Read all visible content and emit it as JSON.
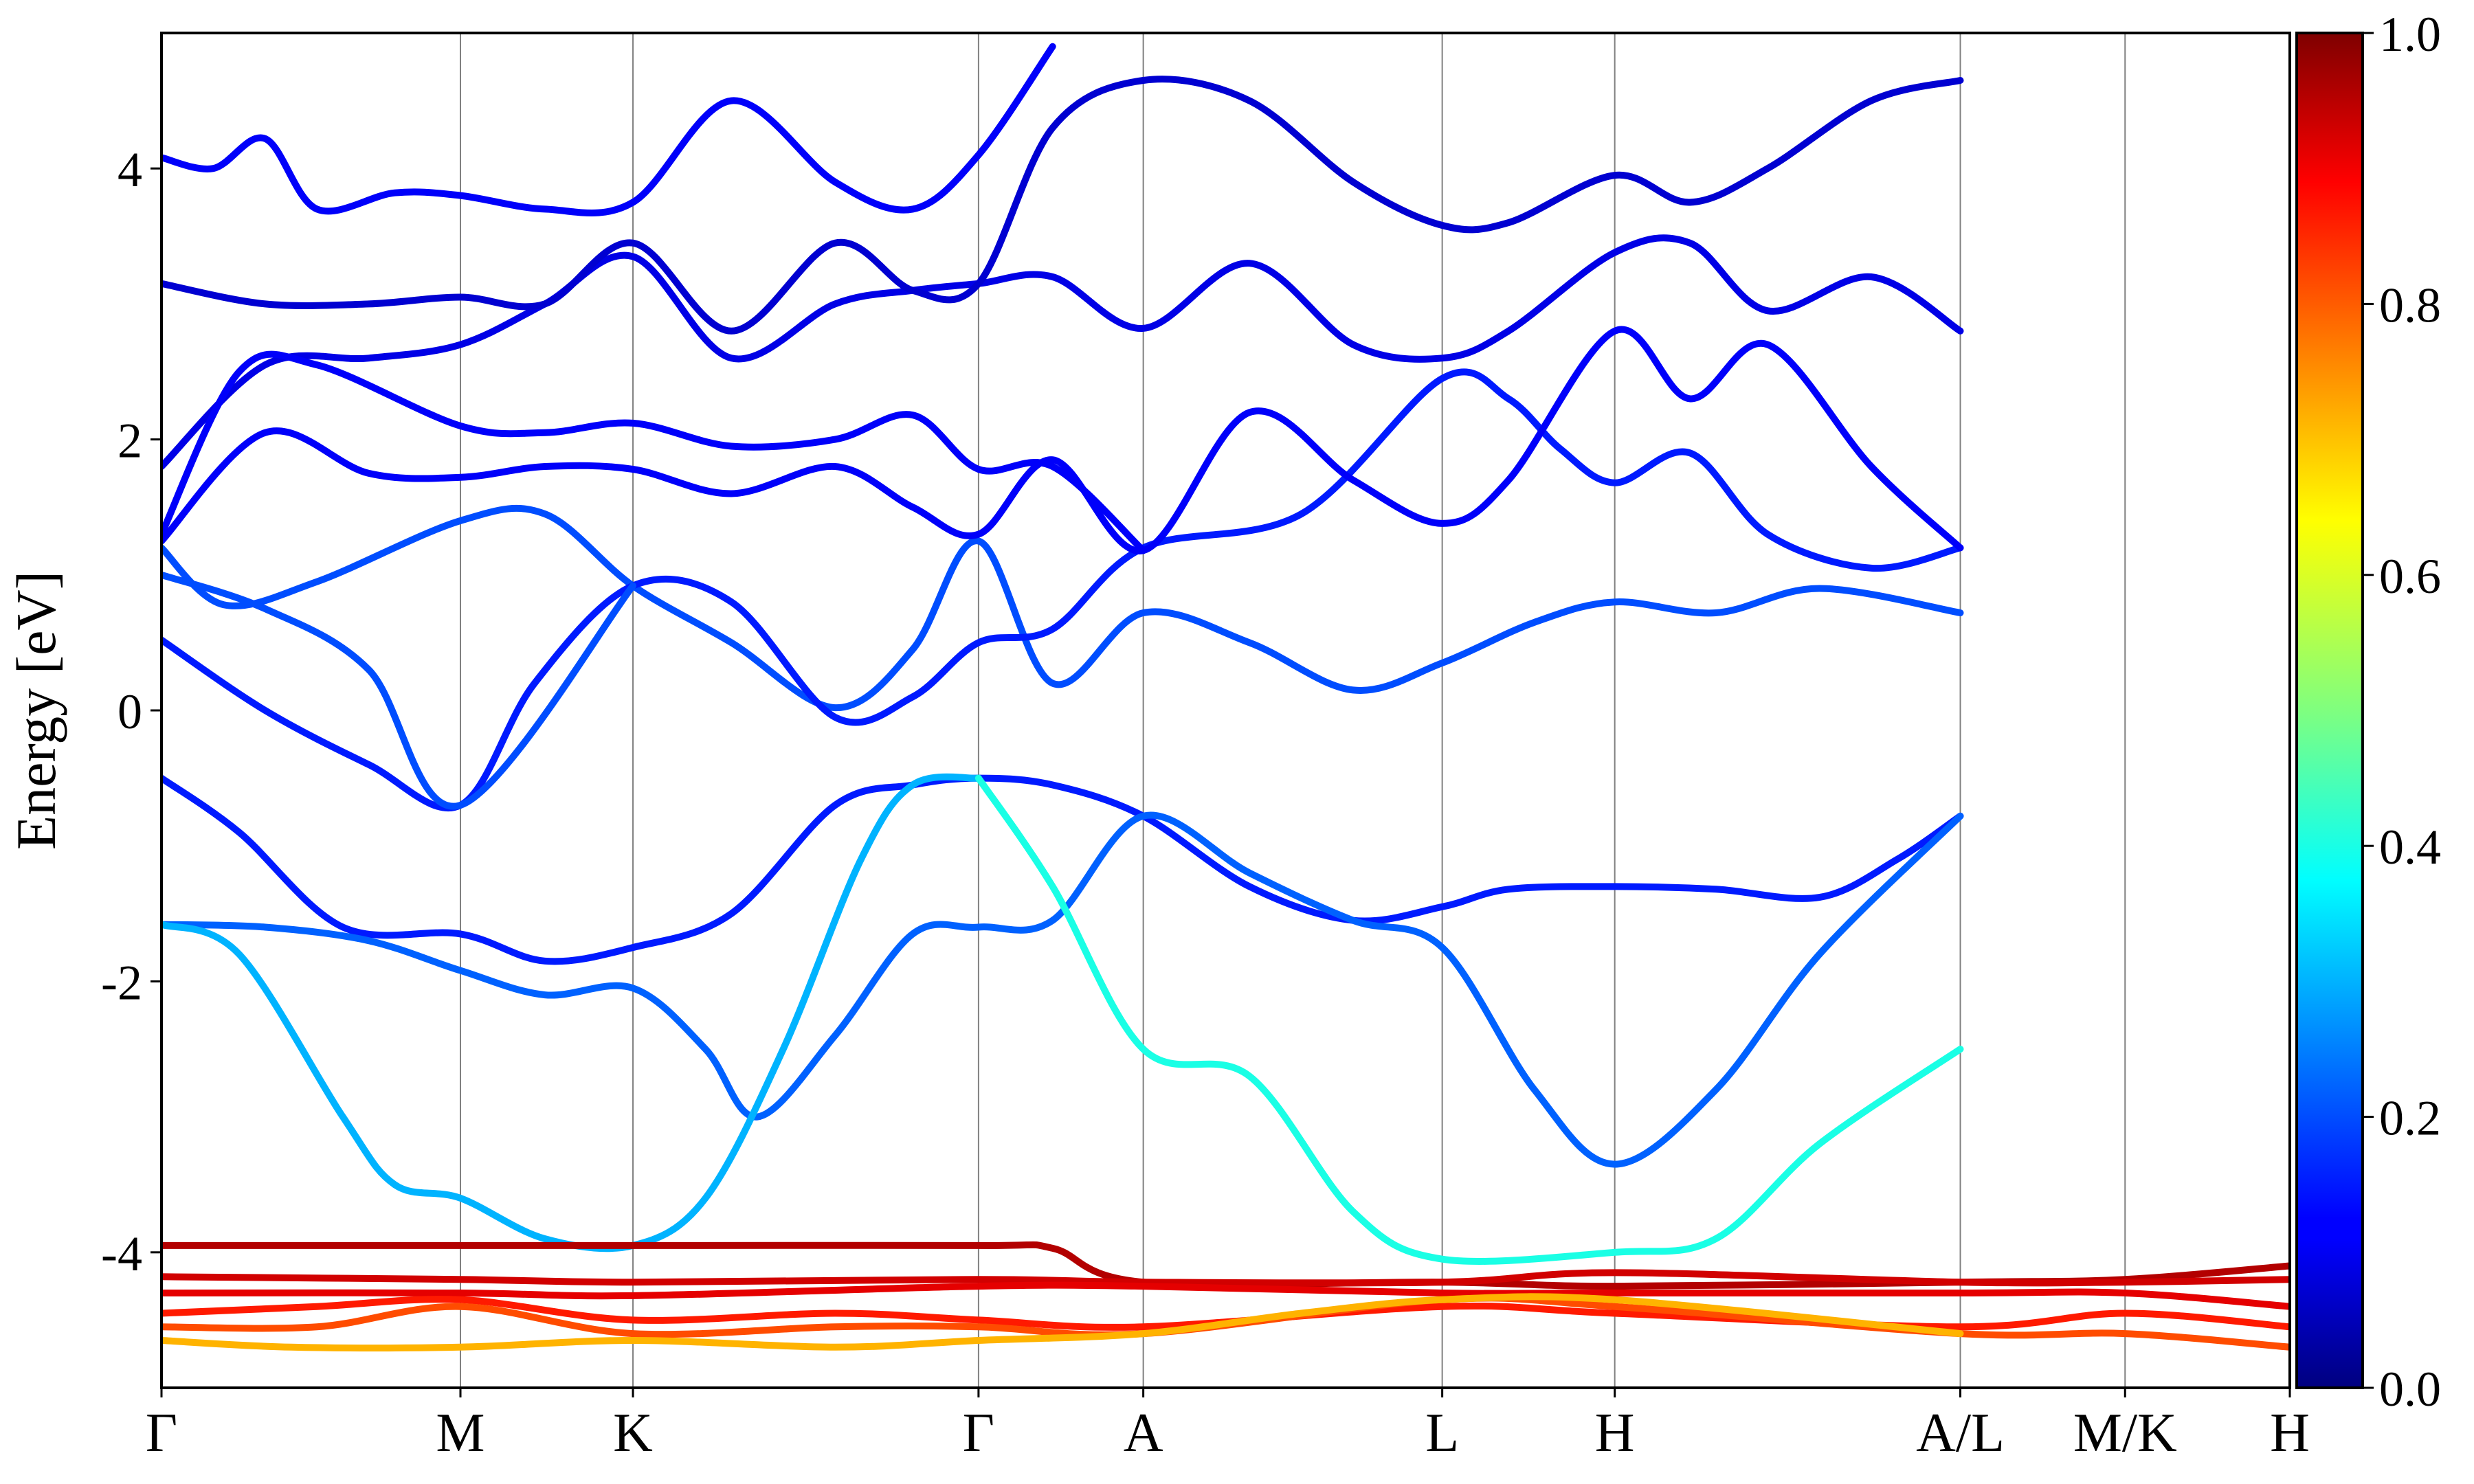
{
  "chart_data": {
    "type": "line",
    "ylabel": "Energy [eV]",
    "ylim": [
      -5,
      5
    ],
    "y_ticks": [
      "-4",
      "-2",
      "0",
      "2",
      "4"
    ],
    "y_tick_values": [
      -4,
      -2,
      0,
      2,
      4
    ],
    "k_points": [
      {
        "label": "Γ",
        "x": 0.0
      },
      {
        "label": "M",
        "x": 0.577
      },
      {
        "label": "K",
        "x": 0.91
      },
      {
        "label": "Γ",
        "x": 1.577
      },
      {
        "label": "A",
        "x": 1.895
      },
      {
        "label": "L",
        "x": 2.472
      },
      {
        "label": "H",
        "x": 2.805
      },
      {
        "label": "A/L",
        "x": 3.472
      },
      {
        "label": "M/K",
        "x": 3.79
      },
      {
        "label": "H",
        "x": 4.108
      }
    ],
    "colorbar": {
      "range": [
        0.0,
        1.0
      ],
      "ticks": [
        "0.0",
        "0.2",
        "0.4",
        "0.6",
        "0.8",
        "1.0"
      ],
      "tick_values": [
        0.0,
        0.2,
        0.4,
        0.6,
        0.8,
        1.0
      ],
      "colormap": "jet"
    },
    "bands": [
      {
        "weight": 0.2,
        "points": [
          [
            0.0,
            1.2
          ],
          [
            0.12,
            0.78
          ],
          [
            0.3,
            0.95
          ],
          [
            0.577,
            1.4
          ],
          [
            0.74,
            1.45
          ],
          [
            0.91,
            0.92
          ],
          [
            1.1,
            0.5
          ],
          [
            1.3,
            0.02
          ],
          [
            1.45,
            0.45
          ],
          [
            1.577,
            1.25
          ],
          [
            1.72,
            0.2
          ],
          [
            1.895,
            0.72
          ],
          [
            2.1,
            0.5
          ],
          [
            2.3,
            0.15
          ],
          [
            2.472,
            0.35
          ],
          [
            2.65,
            0.65
          ],
          [
            2.805,
            0.8
          ],
          [
            3.0,
            0.72
          ],
          [
            3.2,
            0.9
          ],
          [
            3.472,
            0.72
          ]
        ]
      },
      {
        "weight": 0.15,
        "points": [
          [
            0.0,
            0.52
          ],
          [
            0.2,
            0.0
          ],
          [
            0.4,
            -0.4
          ],
          [
            0.577,
            -0.7
          ],
          [
            0.72,
            0.2
          ],
          [
            0.91,
            0.92
          ],
          [
            1.1,
            0.8
          ],
          [
            1.3,
            -0.05
          ],
          [
            1.45,
            0.1
          ],
          [
            1.577,
            0.5
          ],
          [
            1.72,
            0.6
          ],
          [
            1.895,
            1.2
          ],
          [
            2.2,
            1.45
          ],
          [
            2.472,
            2.45
          ],
          [
            2.6,
            2.3
          ],
          [
            2.7,
            1.93
          ],
          [
            2.805,
            1.68
          ],
          [
            2.95,
            1.9
          ],
          [
            3.1,
            1.3
          ],
          [
            3.3,
            1.05
          ],
          [
            3.472,
            1.2
          ]
        ]
      },
      {
        "weight": 0.12,
        "points": [
          [
            0.0,
            1.25
          ],
          [
            0.2,
            2.05
          ],
          [
            0.4,
            1.75
          ],
          [
            0.577,
            1.72
          ],
          [
            0.74,
            1.8
          ],
          [
            0.91,
            1.78
          ],
          [
            1.1,
            1.6
          ],
          [
            1.3,
            1.8
          ],
          [
            1.45,
            1.5
          ],
          [
            1.577,
            1.3
          ],
          [
            1.72,
            1.85
          ],
          [
            1.895,
            1.18
          ],
          [
            2.1,
            2.2
          ],
          [
            2.3,
            1.7
          ],
          [
            2.472,
            1.38
          ],
          [
            2.6,
            1.7
          ],
          [
            2.805,
            2.8
          ],
          [
            2.95,
            2.3
          ],
          [
            3.1,
            2.7
          ],
          [
            3.3,
            1.8
          ],
          [
            3.472,
            1.2
          ]
        ]
      },
      {
        "weight": 0.1,
        "points": [
          [
            0.0,
            1.8
          ],
          [
            0.2,
            2.55
          ],
          [
            0.4,
            2.6
          ],
          [
            0.577,
            2.7
          ],
          [
            0.74,
            3.0
          ],
          [
            0.91,
            3.35
          ],
          [
            1.1,
            2.6
          ],
          [
            1.3,
            3.0
          ],
          [
            1.45,
            3.1
          ],
          [
            1.577,
            3.15
          ],
          [
            1.72,
            3.2
          ],
          [
            1.895,
            2.82
          ],
          [
            2.1,
            3.3
          ],
          [
            2.3,
            2.7
          ],
          [
            2.472,
            2.6
          ],
          [
            2.6,
            2.8
          ],
          [
            2.805,
            3.38
          ],
          [
            2.95,
            3.45
          ],
          [
            3.1,
            2.95
          ],
          [
            3.3,
            3.2
          ],
          [
            3.472,
            2.8
          ]
        ]
      },
      {
        "weight": 0.08,
        "points": [
          [
            0.0,
            3.15
          ],
          [
            0.2,
            3.0
          ],
          [
            0.4,
            3.0
          ],
          [
            0.577,
            3.05
          ],
          [
            0.74,
            3.0
          ],
          [
            0.91,
            3.45
          ],
          [
            1.1,
            2.8
          ],
          [
            1.3,
            3.45
          ],
          [
            1.45,
            3.1
          ],
          [
            1.577,
            3.15
          ],
          [
            1.72,
            4.3
          ],
          [
            1.895,
            4.65
          ],
          [
            2.1,
            4.5
          ],
          [
            2.3,
            3.9
          ],
          [
            2.472,
            3.58
          ],
          [
            2.6,
            3.6
          ],
          [
            2.805,
            3.95
          ],
          [
            2.95,
            3.75
          ],
          [
            3.1,
            4.0
          ],
          [
            3.3,
            4.5
          ],
          [
            3.472,
            4.65
          ]
        ]
      },
      {
        "weight": 0.12,
        "points": [
          [
            0.0,
            4.08
          ],
          [
            0.1,
            4.0
          ],
          [
            0.2,
            4.22
          ],
          [
            0.3,
            3.7
          ],
          [
            0.45,
            3.82
          ],
          [
            0.577,
            3.8
          ],
          [
            0.74,
            3.7
          ],
          [
            0.91,
            3.75
          ],
          [
            1.1,
            4.5
          ],
          [
            1.3,
            3.9
          ],
          [
            1.45,
            3.7
          ],
          [
            1.577,
            4.1
          ],
          [
            1.72,
            4.9
          ]
        ]
      },
      {
        "weight": 0.2,
        "points": [
          [
            0.0,
            1.0
          ],
          [
            0.2,
            0.75
          ],
          [
            0.4,
            0.3
          ],
          [
            0.577,
            -0.7
          ],
          [
            0.91,
            0.92
          ]
        ]
      },
      {
        "weight": 0.12,
        "points": [
          [
            0.0,
            1.3
          ],
          [
            0.15,
            2.5
          ],
          [
            0.3,
            2.55
          ],
          [
            0.577,
            2.1
          ],
          [
            0.74,
            2.05
          ],
          [
            0.91,
            2.12
          ],
          [
            1.1,
            1.95
          ],
          [
            1.3,
            2.0
          ],
          [
            1.45,
            2.18
          ],
          [
            1.577,
            1.78
          ],
          [
            1.72,
            1.8
          ],
          [
            1.895,
            1.18
          ]
        ]
      },
      {
        "weight": 0.15,
        "points": [
          [
            0.0,
            -0.5
          ],
          [
            0.15,
            -0.9
          ],
          [
            0.35,
            -1.6
          ],
          [
            0.577,
            -1.65
          ],
          [
            0.74,
            -1.85
          ],
          [
            0.91,
            -1.75
          ],
          [
            1.1,
            -1.5
          ],
          [
            1.3,
            -0.7
          ],
          [
            1.45,
            -0.55
          ],
          [
            1.577,
            -0.5
          ],
          [
            1.72,
            -0.55
          ],
          [
            1.895,
            -0.78
          ],
          [
            2.1,
            -1.3
          ],
          [
            2.3,
            -1.55
          ],
          [
            2.472,
            -1.45
          ],
          [
            2.6,
            -1.32
          ],
          [
            2.805,
            -1.3
          ],
          [
            3.0,
            -1.32
          ],
          [
            3.2,
            -1.38
          ],
          [
            3.35,
            -1.1
          ],
          [
            3.472,
            -0.78
          ]
        ]
      },
      {
        "weight": 0.22,
        "points": [
          [
            0.0,
            -1.58
          ],
          [
            0.2,
            -1.6
          ],
          [
            0.4,
            -1.7
          ],
          [
            0.577,
            -1.92
          ],
          [
            0.74,
            -2.1
          ],
          [
            0.91,
            -2.05
          ],
          [
            1.05,
            -2.5
          ],
          [
            1.15,
            -3.0
          ],
          [
            1.3,
            -2.4
          ],
          [
            1.45,
            -1.65
          ],
          [
            1.577,
            -1.6
          ],
          [
            1.72,
            -1.55
          ],
          [
            1.895,
            -0.78
          ],
          [
            2.1,
            -1.2
          ],
          [
            2.3,
            -1.55
          ],
          [
            2.472,
            -1.75
          ],
          [
            2.65,
            -2.8
          ],
          [
            2.805,
            -3.35
          ],
          [
            3.0,
            -2.8
          ],
          [
            3.2,
            -1.8
          ],
          [
            3.472,
            -0.78
          ]
        ]
      },
      {
        "weight": 0.3,
        "points": [
          [
            0.0,
            -1.58
          ],
          [
            0.15,
            -1.8
          ],
          [
            0.35,
            -3.0
          ],
          [
            0.45,
            -3.5
          ],
          [
            0.577,
            -3.6
          ],
          [
            0.74,
            -3.9
          ],
          [
            0.91,
            -3.95
          ],
          [
            1.05,
            -3.6
          ],
          [
            1.2,
            -2.5
          ],
          [
            1.35,
            -1.1
          ],
          [
            1.45,
            -0.55
          ],
          [
            1.577,
            -0.5
          ]
        ]
      },
      {
        "weight": 0.4,
        "points": [
          [
            1.577,
            -0.5
          ],
          [
            1.72,
            -1.3
          ],
          [
            1.895,
            -2.5
          ],
          [
            2.1,
            -2.7
          ],
          [
            2.3,
            -3.7
          ],
          [
            2.472,
            -4.05
          ],
          [
            2.805,
            -4.0
          ],
          [
            3.0,
            -3.9
          ],
          [
            3.2,
            -3.2
          ],
          [
            3.472,
            -2.5
          ]
        ]
      },
      {
        "weight": 0.95,
        "points": [
          [
            0.0,
            -3.95
          ],
          [
            0.577,
            -3.95
          ],
          [
            0.91,
            -3.95
          ],
          [
            1.577,
            -3.95
          ],
          [
            1.72,
            -3.97
          ],
          [
            1.895,
            -4.22
          ],
          [
            2.472,
            -4.22
          ],
          [
            2.805,
            -4.25
          ],
          [
            3.472,
            -4.22
          ],
          [
            3.79,
            -4.2
          ],
          [
            4.108,
            -4.1
          ]
        ]
      },
      {
        "weight": 0.92,
        "points": [
          [
            0.0,
            -4.18
          ],
          [
            0.577,
            -4.2
          ],
          [
            0.91,
            -4.22
          ],
          [
            1.577,
            -4.2
          ],
          [
            1.895,
            -4.22
          ],
          [
            2.472,
            -4.22
          ],
          [
            2.805,
            -4.15
          ],
          [
            3.472,
            -4.22
          ],
          [
            3.79,
            -4.22
          ],
          [
            4.108,
            -4.2
          ]
        ]
      },
      {
        "weight": 0.9,
        "points": [
          [
            0.0,
            -4.3
          ],
          [
            0.577,
            -4.3
          ],
          [
            0.91,
            -4.32
          ],
          [
            1.577,
            -4.25
          ],
          [
            1.895,
            -4.25
          ],
          [
            2.472,
            -4.3
          ],
          [
            2.805,
            -4.3
          ],
          [
            3.472,
            -4.3
          ],
          [
            3.79,
            -4.3
          ],
          [
            4.108,
            -4.4
          ]
        ]
      },
      {
        "weight": 0.85,
        "points": [
          [
            0.0,
            -4.45
          ],
          [
            0.3,
            -4.4
          ],
          [
            0.577,
            -4.35
          ],
          [
            0.91,
            -4.5
          ],
          [
            1.3,
            -4.45
          ],
          [
            1.577,
            -4.5
          ],
          [
            1.895,
            -4.55
          ],
          [
            2.472,
            -4.4
          ],
          [
            2.805,
            -4.45
          ],
          [
            3.472,
            -4.55
          ],
          [
            3.79,
            -4.45
          ],
          [
            4.108,
            -4.55
          ]
        ]
      },
      {
        "weight": 0.8,
        "points": [
          [
            0.0,
            -4.55
          ],
          [
            0.3,
            -4.55
          ],
          [
            0.577,
            -4.4
          ],
          [
            0.91,
            -4.6
          ],
          [
            1.3,
            -4.55
          ],
          [
            1.577,
            -4.55
          ],
          [
            1.895,
            -4.6
          ],
          [
            2.472,
            -4.35
          ],
          [
            2.805,
            -4.4
          ],
          [
            3.472,
            -4.6
          ],
          [
            3.79,
            -4.6
          ],
          [
            4.108,
            -4.7
          ]
        ]
      },
      {
        "weight": 0.7,
        "points": [
          [
            0.0,
            -4.65
          ],
          [
            0.25,
            -4.7
          ],
          [
            0.577,
            -4.7
          ],
          [
            0.91,
            -4.65
          ],
          [
            1.3,
            -4.7
          ],
          [
            1.577,
            -4.65
          ],
          [
            1.895,
            -4.6
          ],
          [
            2.2,
            -4.45
          ],
          [
            2.472,
            -4.35
          ],
          [
            2.805,
            -4.35
          ],
          [
            3.472,
            -4.6
          ]
        ]
      }
    ]
  }
}
